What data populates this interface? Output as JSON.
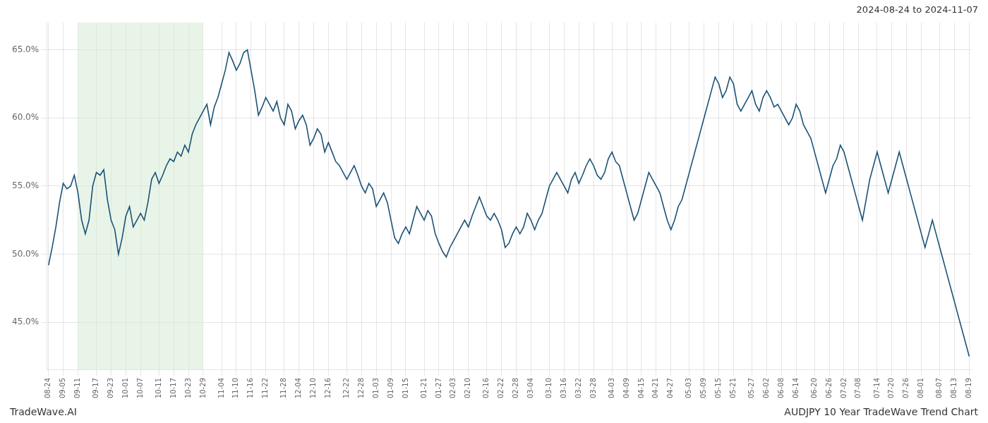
{
  "chart_data": {
    "type": "line",
    "title": "AUDJPY 10 Year TradeWave Trend Chart",
    "subtitle": "2024-08-24 to 2024-11-07",
    "annotations": [
      "TradeWave.AI"
    ],
    "color": "#1a5276",
    "grid": true,
    "ylim": [
      41.5,
      67.0
    ],
    "yticks": [
      {
        "value": 45.0,
        "label": "45.0%"
      },
      {
        "value": 50.0,
        "label": "50.0%"
      },
      {
        "value": 55.0,
        "label": "55.0%"
      },
      {
        "value": 60.0,
        "label": "60.0%"
      },
      {
        "value": 65.0,
        "label": "65.0%"
      }
    ],
    "shade": {
      "start": "09-11",
      "end": "10-29",
      "color": "#d5ebd5"
    },
    "categories": [
      "08-24",
      null,
      null,
      null,
      "09-05",
      null,
      null,
      null,
      "09-11",
      null,
      null,
      null,
      null,
      "09-17",
      null,
      null,
      null,
      "09-23",
      null,
      null,
      null,
      "10-01",
      null,
      null,
      null,
      "10-07",
      null,
      null,
      null,
      null,
      "10-11",
      null,
      null,
      null,
      "10-17",
      null,
      null,
      null,
      "10-23",
      null,
      null,
      null,
      "10-29",
      null,
      null,
      null,
      null,
      "11-04",
      null,
      null,
      null,
      "11-10",
      null,
      null,
      null,
      "11-16",
      null,
      null,
      null,
      "11-22",
      null,
      null,
      null,
      null,
      "11-28",
      null,
      null,
      null,
      "12-04",
      null,
      null,
      null,
      "12-10",
      null,
      null,
      null,
      "12-16",
      null,
      null,
      null,
      null,
      "12-22",
      null,
      null,
      null,
      "12-28",
      null,
      null,
      null,
      "01-03",
      null,
      null,
      null,
      "01-09",
      null,
      null,
      null,
      "01-15",
      null,
      null,
      null,
      null,
      "01-21",
      null,
      null,
      null,
      "01-27",
      null,
      null,
      null,
      "02-03",
      null,
      null,
      null,
      "02-10",
      null,
      null,
      null,
      null,
      "02-16",
      null,
      null,
      null,
      "02-22",
      null,
      null,
      null,
      "02-28",
      null,
      null,
      null,
      "03-04",
      null,
      null,
      null,
      null,
      "03-10",
      null,
      null,
      null,
      "03-16",
      null,
      null,
      null,
      "03-22",
      null,
      null,
      null,
      "03-28",
      null,
      null,
      null,
      null,
      "04-03",
      null,
      null,
      null,
      "04-09",
      null,
      null,
      null,
      "04-15",
      null,
      null,
      null,
      "04-21",
      null,
      null,
      null,
      "04-27",
      null,
      null,
      null,
      null,
      "05-03",
      null,
      null,
      null,
      "05-09",
      null,
      null,
      null,
      "05-15",
      null,
      null,
      null,
      "05-21",
      null,
      null,
      null,
      null,
      "05-27",
      null,
      null,
      null,
      "06-02",
      null,
      null,
      null,
      "06-08",
      null,
      null,
      null,
      "06-14",
      null,
      null,
      null,
      null,
      "06-20",
      null,
      null,
      null,
      "06-26",
      null,
      null,
      null,
      "07-02",
      null,
      null,
      null,
      "07-08",
      null,
      null,
      null,
      null,
      "07-14",
      null,
      null,
      null,
      "07-20",
      null,
      null,
      null,
      "07-26",
      null,
      null,
      null,
      "08-01",
      null,
      null,
      null,
      null,
      "08-07",
      null,
      null,
      null,
      "08-13",
      null,
      null,
      null,
      "08-19"
    ],
    "values": [
      49.2,
      50.5,
      52.0,
      53.8,
      55.2,
      54.8,
      55.0,
      55.8,
      54.5,
      52.5,
      51.5,
      52.5,
      55.0,
      56.0,
      55.8,
      56.2,
      54.0,
      52.5,
      51.8,
      50.0,
      51.2,
      52.8,
      53.5,
      52.0,
      52.5,
      53.0,
      52.5,
      53.8,
      55.5,
      56.0,
      55.2,
      55.8,
      56.5,
      57.0,
      56.8,
      57.5,
      57.2,
      58.0,
      57.5,
      58.8,
      59.5,
      60.0,
      60.5,
      61.0,
      59.5,
      60.8,
      61.5,
      62.5,
      63.5,
      64.8,
      64.2,
      63.5,
      64.0,
      64.8,
      65.0,
      63.5,
      62.0,
      60.2,
      60.8,
      61.5,
      61.0,
      60.5,
      61.2,
      60.0,
      59.5,
      61.0,
      60.5,
      59.2,
      59.8,
      60.2,
      59.5,
      58.0,
      58.5,
      59.2,
      58.8,
      57.5,
      58.2,
      57.5,
      56.8,
      56.5,
      56.0,
      55.5,
      56.0,
      56.5,
      55.8,
      55.0,
      54.5,
      55.2,
      54.8,
      53.5,
      54.0,
      54.5,
      53.8,
      52.5,
      51.2,
      50.8,
      51.5,
      52.0,
      51.5,
      52.5,
      53.5,
      53.0,
      52.5,
      53.2,
      52.8,
      51.5,
      50.8,
      50.2,
      49.8,
      50.5,
      51.0,
      51.5,
      52.0,
      52.5,
      52.0,
      52.8,
      53.5,
      54.2,
      53.5,
      52.8,
      52.5,
      53.0,
      52.5,
      51.8,
      50.5,
      50.8,
      51.5,
      52.0,
      51.5,
      52.0,
      53.0,
      52.5,
      51.8,
      52.5,
      53.0,
      54.0,
      55.0,
      55.5,
      56.0,
      55.5,
      55.0,
      54.5,
      55.5,
      56.0,
      55.2,
      55.8,
      56.5,
      57.0,
      56.5,
      55.8,
      55.5,
      56.0,
      57.0,
      57.5,
      56.8,
      56.5,
      55.5,
      54.5,
      53.5,
      52.5,
      53.0,
      54.0,
      55.0,
      56.0,
      55.5,
      55.0,
      54.5,
      53.5,
      52.5,
      51.8,
      52.5,
      53.5,
      54.0,
      55.0,
      56.0,
      57.0,
      58.0,
      59.0,
      60.0,
      61.0,
      62.0,
      63.0,
      62.5,
      61.5,
      62.0,
      63.0,
      62.5,
      61.0,
      60.5,
      61.0,
      61.5,
      62.0,
      61.0,
      60.5,
      61.5,
      62.0,
      61.5,
      60.8,
      61.0,
      60.5,
      60.0,
      59.5,
      60.0,
      61.0,
      60.5,
      59.5,
      59.0,
      58.5,
      57.5,
      56.5,
      55.5,
      54.5,
      55.5,
      56.5,
      57.0,
      58.0,
      57.5,
      56.5,
      55.5,
      54.5,
      53.5,
      52.5,
      54.0,
      55.5,
      56.5,
      57.5,
      56.5,
      55.5,
      54.5,
      55.5,
      56.5,
      57.5,
      56.5,
      55.5,
      54.5,
      53.5,
      52.5,
      51.5,
      50.5,
      51.5,
      52.5,
      51.5,
      50.5,
      49.5,
      48.5,
      47.5,
      46.5,
      45.5,
      44.5,
      43.5,
      42.5
    ]
  }
}
